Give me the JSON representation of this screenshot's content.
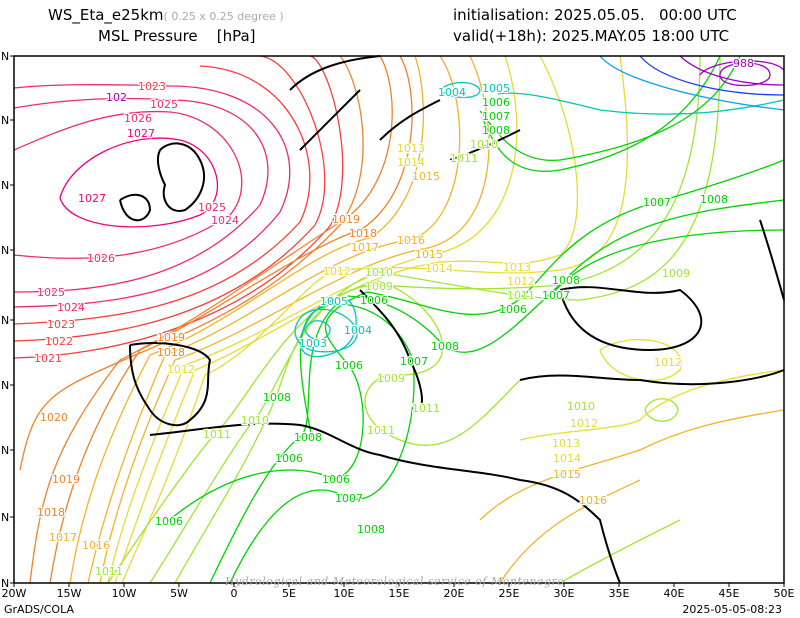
{
  "header": {
    "model": "WS_Eta_e25km",
    "resolution": "( 0.25 x 0.25 degree )",
    "field": "MSL Pressure",
    "unit": "[hPa]",
    "init_label": "initialisation:",
    "init_value": "2025.05.05.   00:00 UTC",
    "valid_label": "valid(+18h):",
    "valid_value": "2025.MAY.05 18:00 UTC"
  },
  "axes": {
    "lon": [
      "20W",
      "15W",
      "10W",
      "5W",
      "0",
      "5E",
      "10E",
      "15E",
      "20E",
      "25E",
      "30E",
      "35E",
      "40E",
      "45E",
      "50E"
    ],
    "lat_suffix": [
      "N",
      "N",
      "N",
      "N",
      "N",
      "N",
      "N",
      "N",
      "N"
    ]
  },
  "map": {
    "watermark": "Hydrological and Meteorological service of Montenegro",
    "labels": [
      "1023",
      "102",
      "1025",
      "1026",
      "1027",
      "1027",
      "1025",
      "1024",
      "1026",
      "1025",
      "1024",
      "1023",
      "1022",
      "1021",
      "1020",
      "1019",
      "1018",
      "1017",
      "1016",
      "1011",
      "1006",
      "1007",
      "1008",
      "1006",
      "1006",
      "1008",
      "1011",
      "1010",
      "1008",
      "1012",
      "1019",
      "1018",
      "1019",
      "1018",
      "1017",
      "1016",
      "1015",
      "1014",
      "1012",
      "1010",
      "1009",
      "1005",
      "1006",
      "1004",
      "1003",
      "1006",
      "1007",
      "1008",
      "1009",
      "1013",
      "1012",
      "1011",
      "1008",
      "1007",
      "1006",
      "1009",
      "1012",
      "1010",
      "1012",
      "1013",
      "1014",
      "1015",
      "1016",
      "1007",
      "1008",
      "988",
      "1004",
      "1005",
      "1006",
      "1007",
      "1008",
      "1010",
      "1011",
      "1013",
      "1014",
      "1015",
      "1011",
      "1011"
    ]
  },
  "footer": {
    "left": "GrADS/COLA",
    "right": "2025-05-05-08:23"
  }
}
